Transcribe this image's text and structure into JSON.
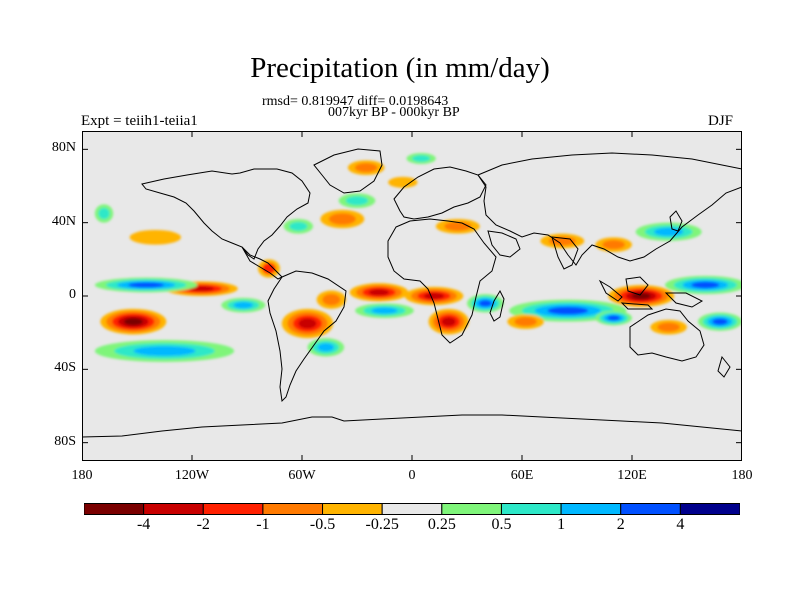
{
  "figure": {
    "title": "Precipitation (in mm/day)",
    "stats_line": "rmsd= 0.819947 diff= 0.0198643",
    "period_line": "007kyr BP - 000kyr BP",
    "experiment_label": "Expt = teiih1-teiia1",
    "season_label": "DJF"
  },
  "axes": {
    "lat_ticks": [
      {
        "label": "80N",
        "lat": 80
      },
      {
        "label": "40N",
        "lat": 40
      },
      {
        "label": "0",
        "lat": 0
      },
      {
        "label": "40S",
        "lat": -40
      },
      {
        "label": "80S",
        "lat": -80
      }
    ],
    "lon_ticks": [
      {
        "label": "180",
        "lon": -180
      },
      {
        "label": "120W",
        "lon": -120
      },
      {
        "label": "60W",
        "lon": -60
      },
      {
        "label": "0",
        "lon": 0
      },
      {
        "label": "60E",
        "lon": 60
      },
      {
        "label": "120E",
        "lon": 120
      },
      {
        "label": "180",
        "lon": 180
      }
    ],
    "lon_range": [
      -180,
      180
    ],
    "lat_range": [
      -90,
      90
    ]
  },
  "colorbar": {
    "colors": [
      "#7a0000",
      "#c80000",
      "#ff2000",
      "#ff7a00",
      "#ffb400",
      "#e8e8e8",
      "#7ff57a",
      "#2de8c8",
      "#00b8ff",
      "#0050ff",
      "#00008c"
    ],
    "labels": [
      {
        "text": "-4",
        "after_box": 1
      },
      {
        "text": "-2",
        "after_box": 2
      },
      {
        "text": "-1",
        "after_box": 3
      },
      {
        "text": "-0.5",
        "after_box": 4
      },
      {
        "text": "-0.25",
        "after_box": 5
      },
      {
        "text": "0.25",
        "after_box": 6
      },
      {
        "text": "0.5",
        "after_box": 7
      },
      {
        "text": "1",
        "after_box": 8
      },
      {
        "text": "2",
        "after_box": 9
      },
      {
        "text": "4",
        "after_box": 10
      }
    ]
  },
  "anomaly_fields": [
    {
      "name": "S Pacific west dry",
      "lon": -152,
      "lat": -14,
      "rx": 18,
      "ry": 7,
      "levels": [
        "#ffb400",
        "#ff7a00",
        "#ff2000",
        "#c80000",
        "#7a0000"
      ]
    },
    {
      "name": "E Pacific ITCZ dry",
      "lon": -115,
      "lat": 4,
      "rx": 20,
      "ry": 4,
      "levels": [
        "#ffb400",
        "#ff7a00",
        "#ff2000",
        "#c80000"
      ]
    },
    {
      "name": "Central Pacific wet band",
      "lon": -145,
      "lat": 6,
      "rx": 28,
      "ry": 4,
      "levels": [
        "#7ff57a",
        "#2de8c8",
        "#00b8ff",
        "#0050ff"
      ]
    },
    {
      "name": "S Pacific wet band",
      "lon": -135,
      "lat": -30,
      "rx": 38,
      "ry": 6,
      "levels": [
        "#7ff57a",
        "#2de8c8",
        "#00b8ff"
      ]
    },
    {
      "name": "NE Pacific dry",
      "lon": -140,
      "lat": 32,
      "rx": 14,
      "ry": 4,
      "levels": [
        "#ffb400"
      ]
    },
    {
      "name": "E Pacific wet",
      "lon": -92,
      "lat": -5,
      "rx": 12,
      "ry": 4,
      "levels": [
        "#7ff57a",
        "#2de8c8",
        "#00b8ff"
      ]
    },
    {
      "name": "Caribbean dry",
      "lon": -78,
      "lat": 15,
      "rx": 6,
      "ry": 5,
      "levels": [
        "#ffb400",
        "#ff2000"
      ]
    },
    {
      "name": "Amazon dry",
      "lon": -57,
      "lat": -15,
      "rx": 14,
      "ry": 8,
      "levels": [
        "#ffb400",
        "#ff7a00",
        "#ff2000",
        "#c80000"
      ]
    },
    {
      "name": "NE Brazil dry",
      "lon": -44,
      "lat": -2,
      "rx": 8,
      "ry": 5,
      "levels": [
        "#ffb400",
        "#ff7a00"
      ]
    },
    {
      "name": "S America wet",
      "lon": -47,
      "lat": -28,
      "rx": 10,
      "ry": 5,
      "levels": [
        "#7ff57a",
        "#2de8c8",
        "#00b8ff"
      ]
    },
    {
      "name": "Tropical Atlantic dry",
      "lon": -18,
      "lat": 2,
      "rx": 16,
      "ry": 5,
      "levels": [
        "#ffb400",
        "#ff7a00",
        "#ff2000",
        "#c80000"
      ]
    },
    {
      "name": "S Atlantic wet",
      "lon": -15,
      "lat": -8,
      "rx": 16,
      "ry": 4,
      "levels": [
        "#7ff57a",
        "#2de8c8",
        "#00b8ff"
      ]
    },
    {
      "name": "West Africa dry",
      "lon": 12,
      "lat": 0,
      "rx": 16,
      "ry": 5,
      "levels": [
        "#ffb400",
        "#ff7a00",
        "#ff2000",
        "#c80000"
      ]
    },
    {
      "name": "Central Africa dry",
      "lon": 20,
      "lat": -14,
      "rx": 11,
      "ry": 7,
      "levels": [
        "#ffb400",
        "#ff7a00",
        "#ff2000",
        "#c80000"
      ]
    },
    {
      "name": "East Africa wet",
      "lon": 40,
      "lat": -4,
      "rx": 10,
      "ry": 5,
      "levels": [
        "#7ff57a",
        "#2de8c8",
        "#00b8ff",
        "#0050ff"
      ]
    },
    {
      "name": "Indian Ocean wet band",
      "lon": 85,
      "lat": -8,
      "rx": 32,
      "ry": 6,
      "levels": [
        "#7ff57a",
        "#2de8c8",
        "#00b8ff",
        "#0050ff"
      ]
    },
    {
      "name": "S Indian Ocean dry",
      "lon": 62,
      "lat": -14,
      "rx": 10,
      "ry": 4,
      "levels": [
        "#ffb400",
        "#ff7a00"
      ]
    },
    {
      "name": "Maritime Continent dry",
      "lon": 125,
      "lat": 0,
      "rx": 18,
      "ry": 6,
      "levels": [
        "#ffb400",
        "#ff7a00",
        "#ff2000",
        "#c80000",
        "#7a0000"
      ]
    },
    {
      "name": "Maritime Continent wet",
      "lon": 110,
      "lat": -12,
      "rx": 10,
      "ry": 4,
      "levels": [
        "#7ff57a",
        "#2de8c8",
        "#00b8ff",
        "#0050ff"
      ]
    },
    {
      "name": "West Pacific wet",
      "lon": 160,
      "lat": 6,
      "rx": 22,
      "ry": 5,
      "levels": [
        "#7ff57a",
        "#2de8c8",
        "#00b8ff",
        "#0050ff"
      ]
    },
    {
      "name": "SW Pacific wet",
      "lon": 168,
      "lat": -14,
      "rx": 12,
      "ry": 5,
      "levels": [
        "#7ff57a",
        "#2de8c8",
        "#00b8ff",
        "#0050ff"
      ]
    },
    {
      "name": "N Australia dry",
      "lon": 140,
      "lat": -17,
      "rx": 10,
      "ry": 4,
      "levels": [
        "#ffb400",
        "#ff7a00"
      ]
    },
    {
      "name": "Kuroshio wet",
      "lon": 140,
      "lat": 35,
      "rx": 18,
      "ry": 5,
      "levels": [
        "#7ff57a",
        "#2de8c8",
        "#00b8ff"
      ]
    },
    {
      "name": "East Asia dry",
      "lon": 110,
      "lat": 28,
      "rx": 10,
      "ry": 4,
      "levels": [
        "#ffb400",
        "#ff7a00"
      ]
    },
    {
      "name": "Himalaya dry",
      "lon": 82,
      "lat": 30,
      "rx": 12,
      "ry": 4,
      "levels": [
        "#ffb400",
        "#ff7a00"
      ]
    },
    {
      "name": "Mediterranean dry",
      "lon": 25,
      "lat": 38,
      "rx": 12,
      "ry": 4,
      "levels": [
        "#ffb400",
        "#ff7a00"
      ]
    },
    {
      "name": "N Atlantic dry",
      "lon": -38,
      "lat": 42,
      "rx": 12,
      "ry": 5,
      "levels": [
        "#ffb400",
        "#ff7a00"
      ]
    },
    {
      "name": "N Atlantic wet",
      "lon": -30,
      "lat": 52,
      "rx": 10,
      "ry": 4,
      "levels": [
        "#7ff57a",
        "#2de8c8"
      ]
    },
    {
      "name": "Gulf Stream wet",
      "lon": -62,
      "lat": 38,
      "rx": 8,
      "ry": 4,
      "levels": [
        "#7ff57a",
        "#2de8c8"
      ]
    },
    {
      "name": "Greenland dry",
      "lon": -25,
      "lat": 70,
      "rx": 10,
      "ry": 4,
      "levels": [
        "#ffb400",
        "#ff7a00"
      ]
    },
    {
      "name": "Arctic wet",
      "lon": 5,
      "lat": 75,
      "rx": 8,
      "ry": 3,
      "levels": [
        "#7ff57a",
        "#2de8c8"
      ]
    },
    {
      "name": "Arctic dry",
      "lon": -5,
      "lat": 62,
      "rx": 8,
      "ry": 3,
      "levels": [
        "#ffb400"
      ]
    },
    {
      "name": "NE Pacific wet",
      "lon": -168,
      "lat": 45,
      "rx": 5,
      "ry": 5,
      "levels": [
        "#7ff57a",
        "#2de8c8"
      ]
    }
  ]
}
